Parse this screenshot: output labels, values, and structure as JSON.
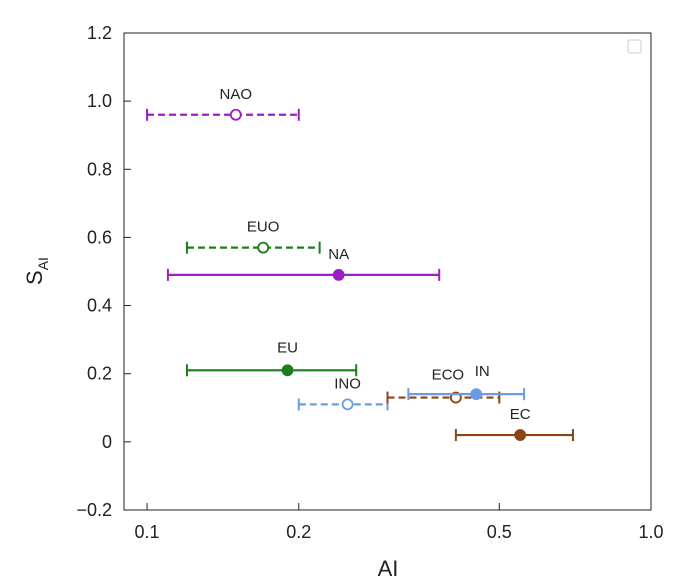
{
  "chart_data": {
    "type": "scatter",
    "title": "",
    "xlabel": "AI",
    "ylabel": "S",
    "ylabel_subscript": "AI",
    "x_scale": "log",
    "xlim": [
      0.09,
      1.0
    ],
    "ylim": [
      -0.2,
      1.2
    ],
    "x_ticks": [
      0.1,
      0.2,
      0.5,
      1.0
    ],
    "x_tick_labels": [
      "0.1",
      "0.2",
      "0.5",
      "1.0"
    ],
    "y_ticks": [
      -0.2,
      0,
      0.2,
      0.4,
      0.6,
      0.8,
      1.0,
      1.2
    ],
    "y_tick_labels": [
      "−0.2",
      "0",
      "0.2",
      "0.4",
      "0.6",
      "0.8",
      "1.0",
      "1.2"
    ],
    "grid": false,
    "legend": "top-right (empty)",
    "points": [
      {
        "label": "NAO",
        "x": 0.15,
        "y": 0.96,
        "xerr": [
          0.1,
          0.2
        ],
        "color": "#9b1fc4",
        "filled": false,
        "dashed": true
      },
      {
        "label": "EUO",
        "x": 0.17,
        "y": 0.57,
        "xerr": [
          0.12,
          0.22
        ],
        "color": "#1a7f1a",
        "filled": false,
        "dashed": true
      },
      {
        "label": "NA",
        "x": 0.24,
        "y": 0.49,
        "xerr": [
          0.11,
          0.38
        ],
        "color": "#9b1fc4",
        "filled": true,
        "dashed": false
      },
      {
        "label": "EU",
        "x": 0.19,
        "y": 0.21,
        "xerr": [
          0.12,
          0.26
        ],
        "color": "#1a7f1a",
        "filled": true,
        "dashed": false
      },
      {
        "label": "INO",
        "x": 0.25,
        "y": 0.11,
        "xerr": [
          0.2,
          0.3
        ],
        "color": "#6a9be6",
        "filled": false,
        "dashed": true
      },
      {
        "label": "ECO",
        "x": 0.41,
        "y": 0.13,
        "xerr": [
          0.3,
          0.5
        ],
        "color": "#8b4513",
        "filled": false,
        "dashed": true
      },
      {
        "label": "IN",
        "x": 0.45,
        "y": 0.14,
        "xerr": [
          0.33,
          0.56
        ],
        "color": "#6a9be6",
        "filled": true,
        "dashed": false
      },
      {
        "label": "EC",
        "x": 0.55,
        "y": 0.02,
        "xerr": [
          0.41,
          0.7
        ],
        "color": "#8b4513",
        "filled": true,
        "dashed": false
      }
    ]
  }
}
